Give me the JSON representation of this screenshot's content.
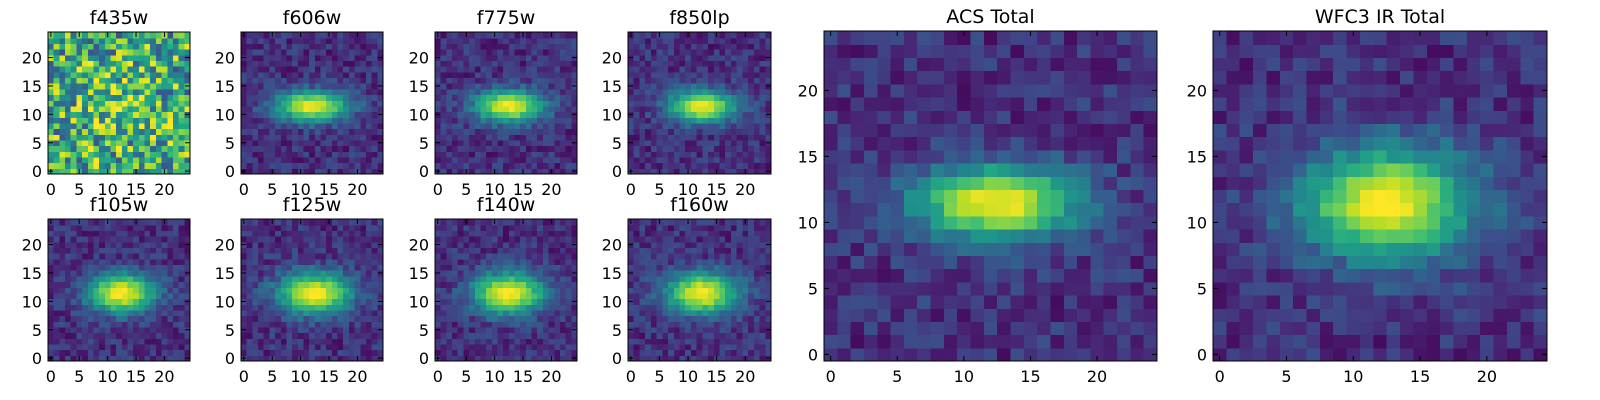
{
  "chart_data": [
    {
      "type": "heatmap",
      "title": "f435w",
      "pattern": "noise",
      "peak": [
        12,
        12
      ],
      "spread": [
        12,
        12
      ],
      "seed": 11,
      "xticks": [
        0,
        5,
        10,
        15,
        20
      ],
      "yticks": [
        0,
        5,
        10,
        15,
        20
      ],
      "xlim": [
        0,
        24
      ],
      "ylim": [
        0,
        24
      ],
      "colormap": "viridis"
    },
    {
      "type": "heatmap",
      "title": "f606w",
      "pattern": "galaxy",
      "peak": [
        12,
        11.5
      ],
      "spread": [
        4.6,
        1.9
      ],
      "seed": 23,
      "xticks": [
        0,
        5,
        10,
        15,
        20
      ],
      "yticks": [
        0,
        5,
        10,
        15,
        20
      ],
      "xlim": [
        0,
        24
      ],
      "ylim": [
        0,
        24
      ],
      "colormap": "viridis"
    },
    {
      "type": "heatmap",
      "title": "f775w",
      "pattern": "galaxy",
      "peak": [
        12.5,
        11.5
      ],
      "spread": [
        4.4,
        2.0
      ],
      "seed": 37,
      "xticks": [
        0,
        5,
        10,
        15,
        20
      ],
      "yticks": [
        0,
        5,
        10,
        15,
        20
      ],
      "xlim": [
        0,
        24
      ],
      "ylim": [
        0,
        24
      ],
      "colormap": "viridis"
    },
    {
      "type": "heatmap",
      "title": "f850lp",
      "pattern": "galaxy",
      "peak": [
        12.5,
        11.5
      ],
      "spread": [
        4.2,
        2.0
      ],
      "seed": 41,
      "xticks": [
        0,
        5,
        10,
        15,
        20
      ],
      "yticks": [
        0,
        5,
        10,
        15,
        20
      ],
      "xlim": [
        0,
        24
      ],
      "ylim": [
        0,
        24
      ],
      "colormap": "viridis"
    },
    {
      "type": "heatmap",
      "title": "f105w",
      "pattern": "galaxy",
      "peak": [
        12.5,
        11.5
      ],
      "spread": [
        4.2,
        2.5
      ],
      "seed": 53,
      "xticks": [
        0,
        5,
        10,
        15,
        20
      ],
      "yticks": [
        0,
        5,
        10,
        15,
        20
      ],
      "xlim": [
        0,
        24
      ],
      "ylim": [
        0,
        24
      ],
      "colormap": "viridis"
    },
    {
      "type": "heatmap",
      "title": "f125w",
      "pattern": "galaxy",
      "peak": [
        12.5,
        11.5
      ],
      "spread": [
        4.6,
        2.6
      ],
      "seed": 67,
      "xticks": [
        0,
        5,
        10,
        15,
        20
      ],
      "yticks": [
        0,
        5,
        10,
        15,
        20
      ],
      "xlim": [
        0,
        24
      ],
      "ylim": [
        0,
        24
      ],
      "colormap": "viridis"
    },
    {
      "type": "heatmap",
      "title": "f140w",
      "pattern": "galaxy",
      "peak": [
        12.5,
        11.5
      ],
      "spread": [
        4.5,
        2.6
      ],
      "seed": 71,
      "xticks": [
        0,
        5,
        10,
        15,
        20
      ],
      "yticks": [
        0,
        5,
        10,
        15,
        20
      ],
      "xlim": [
        0,
        24
      ],
      "ylim": [
        0,
        24
      ],
      "colormap": "viridis"
    },
    {
      "type": "heatmap",
      "title": "f160w",
      "pattern": "galaxy",
      "peak": [
        12.5,
        11.5
      ],
      "spread": [
        4.5,
        2.6
      ],
      "seed": 83,
      "xticks": [
        0,
        5,
        10,
        15,
        20
      ],
      "yticks": [
        0,
        5,
        10,
        15,
        20
      ],
      "xlim": [
        0,
        24
      ],
      "ylim": [
        0,
        24
      ],
      "colormap": "viridis"
    },
    {
      "type": "heatmap",
      "title": "ACS Total",
      "pattern": "galaxy",
      "peak": [
        12.5,
        11.5
      ],
      "spread": [
        4.4,
        2.0
      ],
      "seed": 97,
      "xticks": [
        0,
        5,
        10,
        15,
        20
      ],
      "yticks": [
        0,
        5,
        10,
        15,
        20
      ],
      "xlim": [
        0,
        24
      ],
      "ylim": [
        0,
        24
      ],
      "colormap": "viridis"
    },
    {
      "type": "heatmap",
      "title": "WFC3 IR Total",
      "pattern": "galaxy",
      "peak": [
        12.5,
        11.5
      ],
      "spread": [
        4.6,
        3.0
      ],
      "seed": 101,
      "xticks": [
        0,
        5,
        10,
        15,
        20
      ],
      "yticks": [
        0,
        5,
        10,
        15,
        20
      ],
      "xlim": [
        0,
        24
      ],
      "ylim": [
        0,
        24
      ],
      "colormap": "viridis"
    }
  ]
}
